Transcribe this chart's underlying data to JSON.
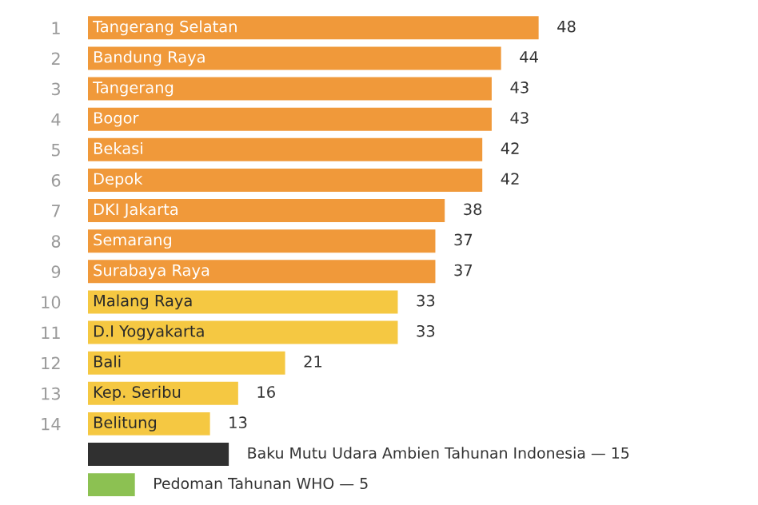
{
  "chart_data": {
    "type": "bar",
    "orientation": "horizontal",
    "categories": [
      "1",
      "2",
      "3",
      "4",
      "5",
      "6",
      "7",
      "8",
      "9",
      "10",
      "11",
      "12",
      "13",
      "14",
      null,
      null
    ],
    "values": [
      48,
      44,
      43,
      43,
      42,
      42,
      38,
      37,
      37,
      33,
      33,
      21,
      16,
      13,
      15,
      5
    ],
    "colors": [
      "#f0993a",
      "#f0993a",
      "#f0993a",
      "#f0993a",
      "#f0993a",
      "#f0993a",
      "#f0993a",
      "#f0993a",
      "#f0993a",
      "#f5c842",
      "#f5c842",
      "#f5c842",
      "#f5c842",
      "#f5c842",
      "#303030",
      "#8cc152"
    ],
    "value_labels": [
      "48",
      "44",
      "43",
      "43",
      "42",
      "42",
      "38",
      "37",
      "37",
      "33",
      "33",
      "21",
      "16",
      "13",
      null,
      null
    ],
    "annotations": [
      "Tangerang Selatan",
      "Bandung Raya",
      "Tangerang",
      "Bogor",
      "Bekasi",
      "Depok",
      "DKI Jakarta",
      "Semarang",
      "Surabaya Raya",
      "Malang Raya",
      "D.I Yogyakarta",
      "Bali",
      "Kep. Seribu",
      "Belitung",
      "Baku Mutu Udara Ambien Tahunan Indonesia — 15",
      "Pedoman Tahunan WHO — 5"
    ]
  }
}
